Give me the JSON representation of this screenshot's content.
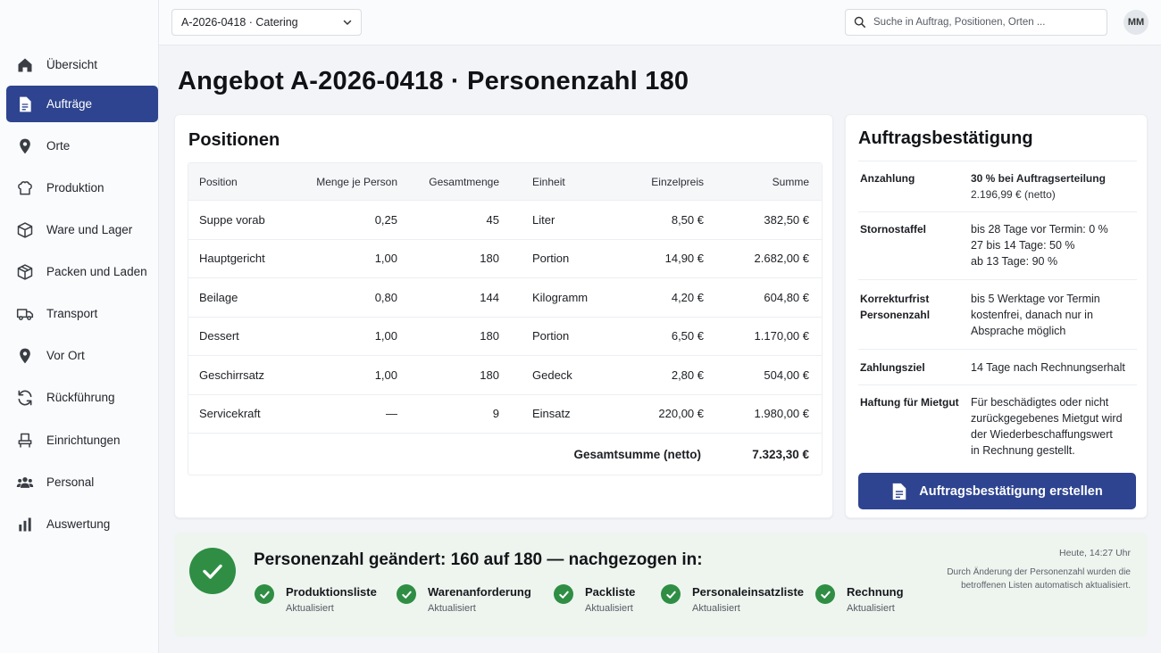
{
  "topbar": {
    "order_select_value": "A-2026-0418 · Catering",
    "search_placeholder": "Suche in Auftrag, Positionen, Orten ...",
    "avatar_initials": "MM"
  },
  "sidebar": {
    "items": [
      {
        "label": "Übersicht",
        "icon": "home-icon"
      },
      {
        "label": "Aufträge",
        "icon": "document-icon",
        "active": true
      },
      {
        "label": "Orte",
        "icon": "map-pin-icon"
      },
      {
        "label": "Produktion",
        "icon": "chef-hat-icon"
      },
      {
        "label": "Ware und Lager",
        "icon": "box-icon"
      },
      {
        "label": "Packen und Laden",
        "icon": "package-icon"
      },
      {
        "label": "Transport",
        "icon": "truck-icon"
      },
      {
        "label": "Vor Ort",
        "icon": "location-pin-icon"
      },
      {
        "label": "Rückführung",
        "icon": "return-arrows-icon"
      },
      {
        "label": "Einrichtungen",
        "icon": "chair-icon"
      },
      {
        "label": "Personal",
        "icon": "people-icon"
      },
      {
        "label": "Auswertung",
        "icon": "bar-chart-icon"
      }
    ]
  },
  "page": {
    "title": "Angebot A-2026-0418 · Personenzahl 180"
  },
  "positions": {
    "heading": "Positionen",
    "columns": {
      "position": "Position",
      "per_person": "Menge je Person",
      "total_qty": "Gesamtmenge",
      "unit": "Einheit",
      "unit_price": "Einzelpreis",
      "sum": "Summe"
    },
    "rows": [
      {
        "position": "Suppe vorab",
        "per_person": "0,25",
        "total_qty": "45",
        "unit": "Liter",
        "unit_price": "8,50 €",
        "sum": "382,50 €"
      },
      {
        "position": "Hauptgericht",
        "per_person": "1,00",
        "total_qty": "180",
        "unit": "Portion",
        "unit_price": "14,90 €",
        "sum": "2.682,00 €"
      },
      {
        "position": "Beilage",
        "per_person": "0,80",
        "total_qty": "144",
        "unit": "Kilogramm",
        "unit_price": "4,20 €",
        "sum": "604,80 €"
      },
      {
        "position": "Dessert",
        "per_person": "1,00",
        "total_qty": "180",
        "unit": "Portion",
        "unit_price": "6,50 €",
        "sum": "1.170,00 €"
      },
      {
        "position": "Geschirrsatz",
        "per_person": "1,00",
        "total_qty": "180",
        "unit": "Gedeck",
        "unit_price": "2,80 €",
        "sum": "504,00 €"
      },
      {
        "position": "Servicekraft",
        "per_person": "—",
        "total_qty": "9",
        "unit": "Einsatz",
        "unit_price": "220,00 €",
        "sum": "1.980,00 €"
      }
    ],
    "total_label": "Gesamtsumme (netto)",
    "total_value": "7.323,30 €"
  },
  "confirmation": {
    "heading": "Auftragsbestätigung",
    "terms": {
      "deposit_key": "Anzahlung",
      "deposit_line1": "30 % bei Auftragserteilung",
      "deposit_line2": "2.196,99 € (netto)",
      "cancel_key": "Stornostaffel",
      "cancel_line1": "bis 28 Tage vor Termin: 0 %",
      "cancel_line2": "27 bis 14 Tage: 50 %",
      "cancel_line3": "ab 13 Tage: 90 %",
      "correction_key_line1": "Korrekturfrist",
      "correction_key_line2": "Personenzahl",
      "correction_line1": "bis 5 Werktage vor Termin",
      "correction_line2": "kostenfrei, danach nur in",
      "correction_line3": "Absprache möglich",
      "payment_key": "Zahlungsziel",
      "payment_value": "14 Tage nach Rechnungserhalt",
      "liability_key": "Haftung für Mietgut",
      "liability_line1": "Für beschädigtes oder nicht",
      "liability_line2": "zurückgegebenes Mietgut wird",
      "liability_line3": "der Wiederbeschaffungswert",
      "liability_line4": "in Rechnung gestellt."
    },
    "button_label": "Auftragsbestätigung erstellen"
  },
  "banner": {
    "title": "Personenzahl geändert: 160 auf 180 — nachgezogen in:",
    "time": "Heute, 14:27 Uhr",
    "note": "Durch Änderung der Personenzahl wurden die betroffenen Listen automatisch aktualisiert.",
    "items": [
      {
        "label": "Produktionsliste",
        "status": "Aktualisiert"
      },
      {
        "label": "Warenanforderung",
        "status": "Aktualisiert"
      },
      {
        "label": "Packliste",
        "status": "Aktualisiert"
      },
      {
        "label": "Personaleinsatzliste",
        "status": "Aktualisiert"
      },
      {
        "label": "Rechnung",
        "status": "Aktualisiert"
      }
    ]
  },
  "colors": {
    "accent": "#2e4490",
    "success": "#2f8e44",
    "banner_bg": "#eef5ef"
  }
}
